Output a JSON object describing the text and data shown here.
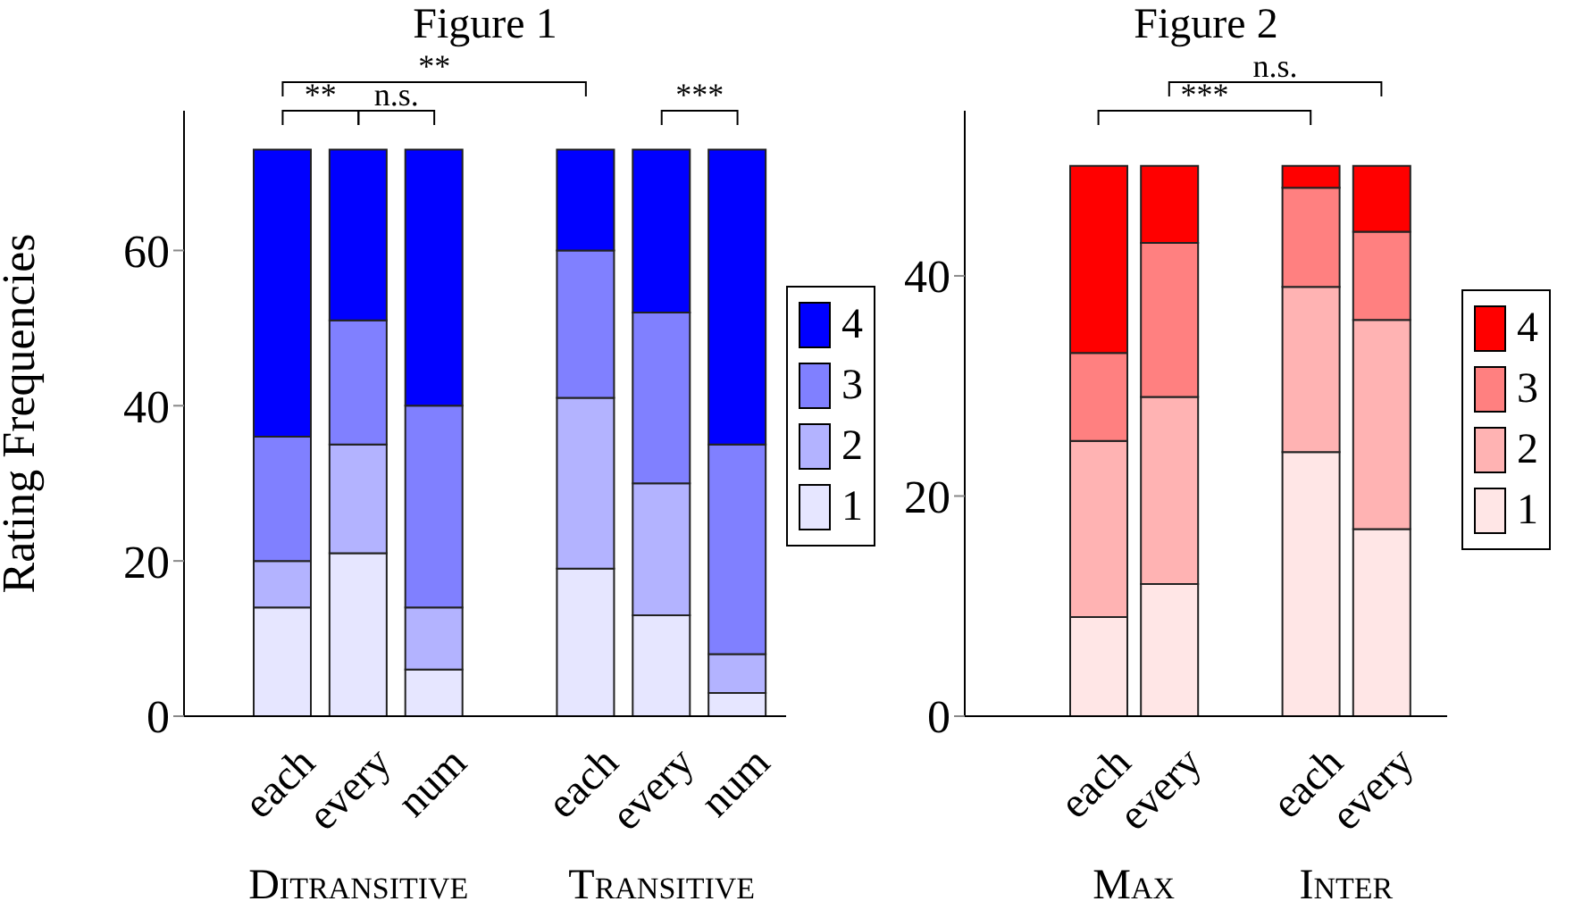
{
  "chart_data": [
    {
      "type": "bar",
      "title": "Figure 1",
      "ylabel": "Rating Frequencies",
      "stacked": true,
      "legend": "right",
      "categories": [
        "each",
        "every",
        "num",
        null,
        "each",
        "every",
        "num"
      ],
      "ylim": [
        0,
        78
      ],
      "yticks": [
        0,
        20,
        40,
        60
      ],
      "series": [
        {
          "name": "1",
          "color": "#e6e6ff",
          "values": [
            14,
            21,
            6,
            null,
            19,
            13,
            3
          ]
        },
        {
          "name": "2",
          "color": "#b3b3ff",
          "values": [
            6,
            14,
            8,
            null,
            22,
            17,
            5
          ]
        },
        {
          "name": "3",
          "color": "#8080ff",
          "values": [
            16,
            16,
            26,
            null,
            19,
            22,
            27
          ]
        },
        {
          "name": "4",
          "color": "#0000ff",
          "values": [
            37,
            22,
            33,
            null,
            13,
            21,
            38
          ]
        }
      ],
      "annotations": [
        "**",
        "**",
        "n.s.",
        "***",
        "Ditransitive",
        "Transitive"
      ]
    },
    {
      "type": "bar",
      "title": "Figure 2",
      "stacked": true,
      "legend": "right",
      "categories": [
        "each",
        "every",
        null,
        "each",
        "every"
      ],
      "ylim": [
        0,
        55
      ],
      "yticks": [
        0,
        20,
        40
      ],
      "series": [
        {
          "name": "1",
          "color": "#ffe6e6",
          "values": [
            9,
            12,
            null,
            24,
            17
          ]
        },
        {
          "name": "2",
          "color": "#ffb3b3",
          "values": [
            16,
            17,
            null,
            15,
            19
          ]
        },
        {
          "name": "3",
          "color": "#ff8080",
          "values": [
            8,
            14,
            null,
            9,
            8
          ]
        },
        {
          "name": "4",
          "color": "#ff0000",
          "values": [
            17,
            7,
            null,
            2,
            6
          ]
        }
      ],
      "annotations": [
        "n.s.",
        "***",
        "Max",
        "Inter"
      ]
    }
  ]
}
